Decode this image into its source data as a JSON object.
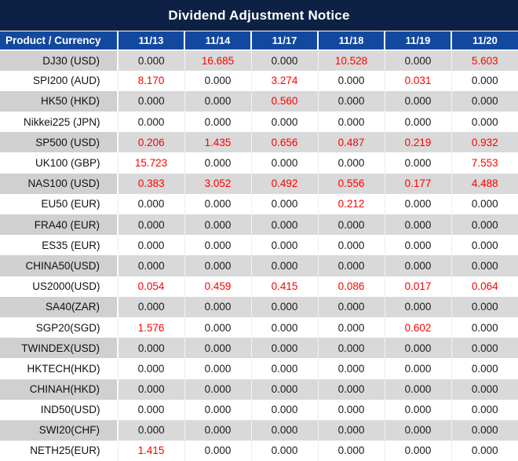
{
  "title": "Dividend Adjustment Notice",
  "colors": {
    "title_bg": "#0d2145",
    "header_bg": "#12499e",
    "header_text": "#ffffff",
    "stripe_bg": "#d9d9d9",
    "stripe_label_bg": "#d0d0d0",
    "row_bg": "#ffffff",
    "zero_text": "#1a1a1a",
    "nonzero_text": "#fe0000"
  },
  "table": {
    "product_header": "Product / Currency",
    "date_headers": [
      "11/13",
      "11/14",
      "11/17",
      "11/18",
      "11/19",
      "11/20"
    ],
    "rows": [
      {
        "product": "DJ30 (USD)",
        "values": [
          "0.000",
          "16.685",
          "0.000",
          "10.528",
          "0.000",
          "5.603"
        ]
      },
      {
        "product": "SPI200 (AUD)",
        "values": [
          "8.170",
          "0.000",
          "3.274",
          "0.000",
          "0.031",
          "0.000"
        ]
      },
      {
        "product": "HK50 (HKD)",
        "values": [
          "0.000",
          "0.000",
          "0.560",
          "0.000",
          "0.000",
          "0.000"
        ]
      },
      {
        "product": "Nikkei225 (JPN)",
        "values": [
          "0.000",
          "0.000",
          "0.000",
          "0.000",
          "0.000",
          "0.000"
        ]
      },
      {
        "product": "SP500 (USD)",
        "values": [
          "0.206",
          "1.435",
          "0.656",
          "0.487",
          "0.219",
          "0.932"
        ]
      },
      {
        "product": "UK100 (GBP)",
        "values": [
          "15.723",
          "0.000",
          "0.000",
          "0.000",
          "0.000",
          "7.553"
        ]
      },
      {
        "product": "NAS100 (USD)",
        "values": [
          "0.383",
          "3.052",
          "0.492",
          "0.556",
          "0.177",
          "4.488"
        ]
      },
      {
        "product": "EU50 (EUR)",
        "values": [
          "0.000",
          "0.000",
          "0.000",
          "0.212",
          "0.000",
          "0.000"
        ]
      },
      {
        "product": "FRA40 (EUR)",
        "values": [
          "0.000",
          "0.000",
          "0.000",
          "0.000",
          "0.000",
          "0.000"
        ]
      },
      {
        "product": "ES35 (EUR)",
        "values": [
          "0.000",
          "0.000",
          "0.000",
          "0.000",
          "0.000",
          "0.000"
        ]
      },
      {
        "product": "CHINA50(USD)",
        "values": [
          "0.000",
          "0.000",
          "0.000",
          "0.000",
          "0.000",
          "0.000"
        ]
      },
      {
        "product": "US2000(USD)",
        "values": [
          "0.054",
          "0.459",
          "0.415",
          "0.086",
          "0.017",
          "0.064"
        ]
      },
      {
        "product": "SA40(ZAR)",
        "values": [
          "0.000",
          "0.000",
          "0.000",
          "0.000",
          "0.000",
          "0.000"
        ]
      },
      {
        "product": "SGP20(SGD)",
        "values": [
          "1.576",
          "0.000",
          "0.000",
          "0.000",
          "0.602",
          "0.000"
        ]
      },
      {
        "product": "TWINDEX(USD)",
        "values": [
          "0.000",
          "0.000",
          "0.000",
          "0.000",
          "0.000",
          "0.000"
        ]
      },
      {
        "product": "HKTECH(HKD)",
        "values": [
          "0.000",
          "0.000",
          "0.000",
          "0.000",
          "0.000",
          "0.000"
        ]
      },
      {
        "product": "CHINAH(HKD)",
        "values": [
          "0.000",
          "0.000",
          "0.000",
          "0.000",
          "0.000",
          "0.000"
        ]
      },
      {
        "product": "IND50(USD)",
        "values": [
          "0.000",
          "0.000",
          "0.000",
          "0.000",
          "0.000",
          "0.000"
        ]
      },
      {
        "product": "SWI20(CHF)",
        "values": [
          "0.000",
          "0.000",
          "0.000",
          "0.000",
          "0.000",
          "0.000"
        ]
      },
      {
        "product": "NETH25(EUR)",
        "values": [
          "1.415",
          "0.000",
          "0.000",
          "0.000",
          "0.000",
          "0.000"
        ]
      }
    ]
  }
}
